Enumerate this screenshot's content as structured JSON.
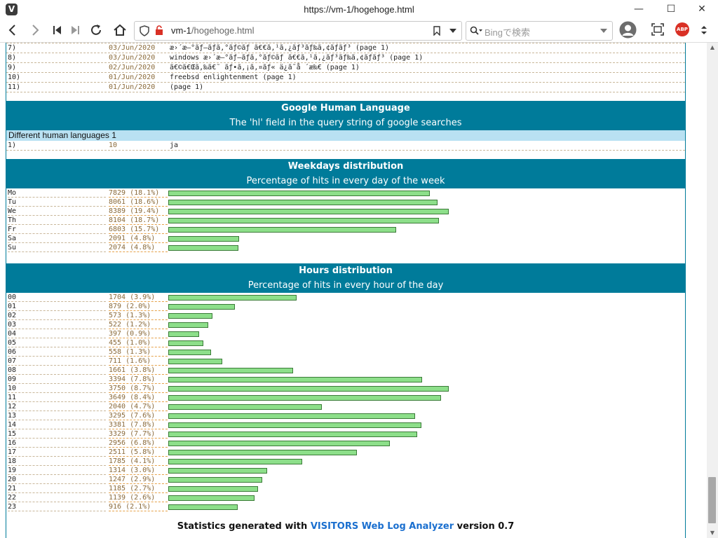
{
  "window": {
    "title": "https://vm-1/hogehoge.html",
    "app_logo": "V",
    "minimize": "—",
    "maximize": "☐",
    "close": "✕"
  },
  "toolbar": {
    "url_host": "vm-1",
    "url_path": "/hogehoge.html",
    "search_placeholder": "Bingで検索",
    "adblock_label": "ABP"
  },
  "keyphrases": {
    "rows": [
      {
        "n": "7)",
        "date": "03/Jun/2020",
        "text": "æ›´æ–°ãƒ—ãƒã‚°ãƒ©ãƒ ã€€ã‚¹ã‚¿ãƒ³ãƒ‰ã‚¢ãƒ­ãƒ³ (page 1)"
      },
      {
        "n": "8)",
        "date": "03/Jun/2020",
        "text": "windows æ›´æ–°ãƒ—ãƒã‚°ãƒ©ãƒ ã€€ã‚¹ã‚¿ãƒ³ãƒ‰ã‚¢ãƒ­ãƒ³ (page 1)"
      },
      {
        "n": "9)",
        "date": "02/Jun/2020",
        "text": "ã€©ã€Œã‚‰ã€˜ ãƒ•ã‚¡ã‚¤ãƒ« ä¿ã˜å ´æ‰€ (page 1)"
      },
      {
        "n": "10)",
        "date": "01/Jun/2020",
        "text": "freebsd enlightenment (page 1)"
      },
      {
        "n": "11)",
        "date": "01/Jun/2020",
        "text": "(page 1)"
      }
    ]
  },
  "language": {
    "title": "Google Human Language",
    "subtitle": "The 'hl' field in the query string of google searches",
    "subhead": "Different human languages 1",
    "rows": [
      {
        "n": "1)",
        "count": "10",
        "lang": "ja"
      }
    ]
  },
  "weekdays": {
    "title": "Weekdays distribution",
    "subtitle": "Percentage of hits in every day of the week",
    "rows": [
      {
        "label": "Mo",
        "value": "7829 (18.1%)",
        "hits": 7829
      },
      {
        "label": "Tu",
        "value": "8061 (18.6%)",
        "hits": 8061
      },
      {
        "label": "We",
        "value": "8389 (19.4%)",
        "hits": 8389
      },
      {
        "label": "Th",
        "value": "8104 (18.7%)",
        "hits": 8104
      },
      {
        "label": "Fr",
        "value": "6803 (15.7%)",
        "hits": 6803
      },
      {
        "label": "Sa",
        "value": "2091 (4.8%)",
        "hits": 2091
      },
      {
        "label": "Su",
        "value": "2074 (4.8%)",
        "hits": 2074
      }
    ]
  },
  "hours": {
    "title": "Hours distribution",
    "subtitle": "Percentage of hits in every hour of the day",
    "rows": [
      {
        "label": "00",
        "value": "1704 (3.9%)",
        "hits": 1704
      },
      {
        "label": "01",
        "value": "879 (2.0%)",
        "hits": 879
      },
      {
        "label": "02",
        "value": "573 (1.3%)",
        "hits": 573
      },
      {
        "label": "03",
        "value": "522 (1.2%)",
        "hits": 522
      },
      {
        "label": "04",
        "value": "397 (0.9%)",
        "hits": 397
      },
      {
        "label": "05",
        "value": "455 (1.0%)",
        "hits": 455
      },
      {
        "label": "06",
        "value": "558 (1.3%)",
        "hits": 558
      },
      {
        "label": "07",
        "value": "711 (1.6%)",
        "hits": 711
      },
      {
        "label": "08",
        "value": "1661 (3.8%)",
        "hits": 1661
      },
      {
        "label": "09",
        "value": "3394 (7.8%)",
        "hits": 3394
      },
      {
        "label": "10",
        "value": "3750 (8.7%)",
        "hits": 3750
      },
      {
        "label": "11",
        "value": "3649 (8.4%)",
        "hits": 3649
      },
      {
        "label": "12",
        "value": "2040 (4.7%)",
        "hits": 2040
      },
      {
        "label": "13",
        "value": "3295 (7.6%)",
        "hits": 3295
      },
      {
        "label": "14",
        "value": "3381 (7.8%)",
        "hits": 3381
      },
      {
        "label": "15",
        "value": "3329 (7.7%)",
        "hits": 3329
      },
      {
        "label": "16",
        "value": "2956 (6.8%)",
        "hits": 2956
      },
      {
        "label": "17",
        "value": "2511 (5.8%)",
        "hits": 2511
      },
      {
        "label": "18",
        "value": "1785 (4.1%)",
        "hits": 1785
      },
      {
        "label": "19",
        "value": "1314 (3.0%)",
        "hits": 1314
      },
      {
        "label": "20",
        "value": "1247 (2.9%)",
        "hits": 1247
      },
      {
        "label": "21",
        "value": "1185 (2.7%)",
        "hits": 1185
      },
      {
        "label": "22",
        "value": "1139 (2.6%)",
        "hits": 1139
      },
      {
        "label": "23",
        "value": "916 (2.1%)",
        "hits": 916
      }
    ]
  },
  "footer": {
    "prefix": "Statistics generated with ",
    "link": "VISITORS Web Log Analyzer",
    "suffix": " version 0.7"
  },
  "colors": {
    "header_bg": "#007b9a",
    "subhead_bg": "#b9e1f2",
    "bar_fill": "#8ddf8a",
    "bar_border": "#3b7b38",
    "link": "#1a6fcf"
  }
}
